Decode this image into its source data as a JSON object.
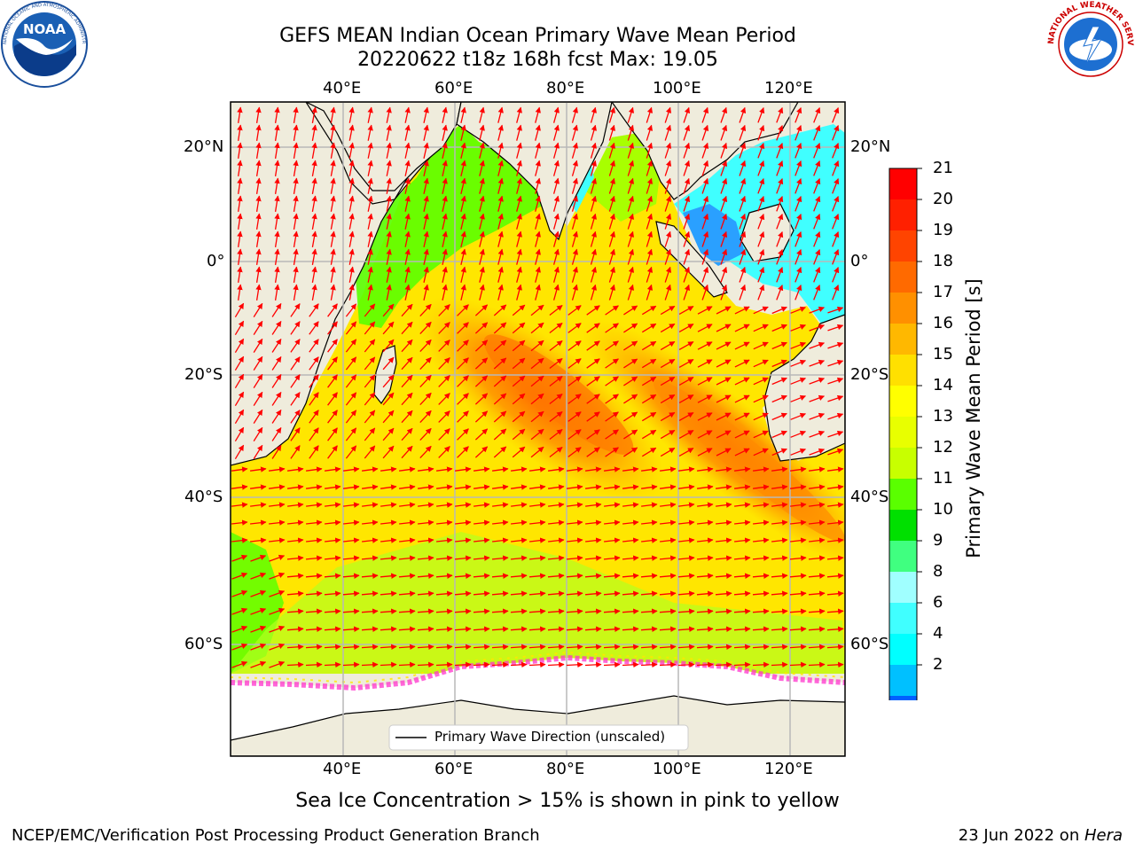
{
  "title": {
    "line1": "GEFS MEAN Indian Ocean Primary Wave Mean Period",
    "line2": "20220622 t18z 168h fcst   Max: 19.05"
  },
  "axes": {
    "lon_ticks": [
      "40°E",
      "60°E",
      "80°E",
      "100°E",
      "120°E"
    ],
    "lat_ticks": [
      "20°N",
      "0°",
      "20°S",
      "40°S",
      "60°S"
    ]
  },
  "legend": {
    "label": "Primary Wave Direction (unscaled)"
  },
  "colorbar": {
    "title": "Primary Wave Mean Period [s]",
    "ticks": [
      "21",
      "20",
      "19",
      "18",
      "17",
      "16",
      "15",
      "14",
      "13",
      "12",
      "11",
      "10",
      "9",
      "8",
      "6",
      "4",
      "2"
    ],
    "colors": [
      "#ff0000",
      "#ff2000",
      "#ff4400",
      "#ff6a00",
      "#ff9000",
      "#ffb800",
      "#ffe000",
      "#ffff00",
      "#e8ff00",
      "#c8ff00",
      "#5aff00",
      "#00e000",
      "#40ff80",
      "#a0ffff",
      "#40ffff",
      "#00ffff",
      "#00c0ff",
      "#0060ff",
      "#0000ff"
    ]
  },
  "note": "Sea Ice Concentration > 15% is shown in pink to yellow",
  "footer": {
    "left": "NCEP/EMC/Verification Post Processing Product Generation Branch",
    "date": "23 Jun 2022 on ",
    "machine": "Hera"
  },
  "logos": {
    "noaa": {
      "text": "NOAA",
      "ring": "NATIONAL OCEANIC AND ATMOSPHERIC ADMINISTRATION"
    },
    "nws": {
      "ring": "NATIONAL WEATHER SERVICE"
    }
  }
}
